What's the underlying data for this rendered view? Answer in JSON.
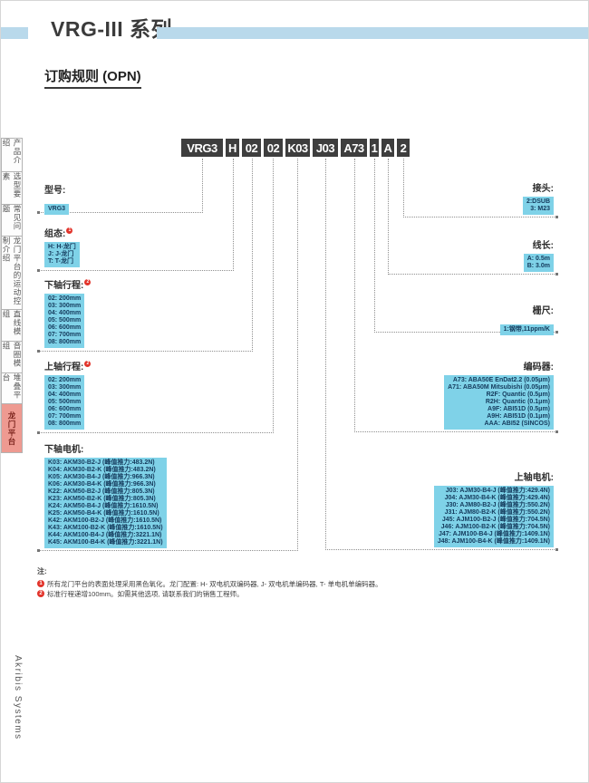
{
  "page": {
    "title": "VRG-III 系列",
    "subtitle": "订购规则 (OPN)",
    "brand_vertical": "Akribis Systems"
  },
  "colors": {
    "accent_bar": "#b9d9eb",
    "option_box": "#7fd2e8",
    "part_number_box": "#3e3e3e",
    "active_tab": "#ee9a91",
    "note_marker": "#e2342b"
  },
  "sidebar": {
    "items": [
      {
        "label": "产品介绍",
        "active": false
      },
      {
        "label": "选型要素",
        "active": false
      },
      {
        "label": "常见问题",
        "active": false
      },
      {
        "label": "龙门平台的运动控制介绍",
        "active": false
      },
      {
        "label": "直线模组",
        "active": false
      },
      {
        "label": "音圈模组",
        "active": false
      },
      {
        "label": "堆叠平台",
        "active": false
      },
      {
        "label": "龙门平台",
        "active": true
      }
    ]
  },
  "part_number": {
    "segments": [
      "VRG3",
      "H",
      "02",
      "02",
      "K03",
      "J03",
      "A73",
      "1",
      "A",
      "2"
    ]
  },
  "sections": {
    "left": [
      {
        "id": "model",
        "label": "型号:",
        "marker": "",
        "options": [
          "VRG3"
        ]
      },
      {
        "id": "config",
        "label": "组态:",
        "marker": "1",
        "options": [
          "H: H-龙门",
          "J: J-龙门",
          "T: T-龙门"
        ]
      },
      {
        "id": "lower-stroke",
        "label": "下轴行程:",
        "marker": "2",
        "options": [
          "02: 200mm",
          "03: 300mm",
          "04: 400mm",
          "05: 500mm",
          "06: 600mm",
          "07: 700mm",
          "08: 800mm"
        ]
      },
      {
        "id": "upper-stroke",
        "label": "上轴行程:",
        "marker": "2",
        "options": [
          "02: 200mm",
          "03: 300mm",
          "04: 400mm",
          "05: 500mm",
          "06: 600mm",
          "07: 700mm",
          "08: 800mm"
        ]
      },
      {
        "id": "lower-motor",
        "label": "下轴电机:",
        "marker": "",
        "options": [
          "K03: AKM30-B2-J (峰值推力:483.2N)",
          "K04: AKM30-B2-K (峰值推力:483.2N)",
          "K05: AKM30-B4-J (峰值推力:966.3N)",
          "K06: AKM30-B4-K (峰值推力:966.3N)",
          "K22: AKM50-B2-J (峰值推力:805.3N)",
          "K23: AKM50-B2-K (峰值推力:805.3N)",
          "K24: AKM50-B4-J (峰值推力:1610.5N)",
          "K25: AKM50-B4-K (峰值推力:1610.5N)",
          "K42: AKM100-B2-J (峰值推力:1610.5N)",
          "K43: AKM100-B2-K (峰值推力:1610.5N)",
          "K44: AKM100-B4-J (峰值推力:3221.1N)",
          "K45: AKM100-B4-K (峰值推力:3221.1N)"
        ]
      }
    ],
    "right": [
      {
        "id": "connector",
        "label": "接头:",
        "marker": "",
        "options": [
          "2:DSUB",
          "3: M23"
        ]
      },
      {
        "id": "cable-length",
        "label": "线长:",
        "marker": "",
        "options": [
          "A: 0.5m",
          "B: 3.0m"
        ]
      },
      {
        "id": "scale",
        "label": "栅尺:",
        "marker": "",
        "options": [
          "1:钢带,11ppm/K"
        ]
      },
      {
        "id": "encoder",
        "label": "编码器:",
        "marker": "",
        "options": [
          "A73: ABA50E EnDat2.2 (0.05μm)",
          "A71: ABA50M Mitsubishi (0.05μm)",
          "R2F: Quantic (0.5μm)",
          "R2H: Quantic (0.1μm)",
          "A9F: ABI51D (0.5μm)",
          "A9H: ABI51D (0.1μm)",
          "AAA: ABI52 (SINCOS)"
        ]
      },
      {
        "id": "upper-motor",
        "label": "上轴电机:",
        "marker": "",
        "options": [
          "J03: AJM30-B4-J (峰值推力:429.4N)",
          "J04: AJM30-B4-K (峰值推力:429.4N)",
          "J30: AJM80-B2-J (峰值推力:550.2N)",
          "J31: AJM80-B2-K (峰值推力:550.2N)",
          "J45: AJM100-B2-J (峰值推力:704.5N)",
          "J46: AJM100-B2-K (峰值推力:704.5N)",
          "J47: AJM100-B4-J (峰值推力:1409.1N)",
          "J48: AJM100-B4-K (峰值推力:1409.1N)"
        ]
      }
    ]
  },
  "notes": {
    "title": "注:",
    "items": [
      {
        "num": "1",
        "text": "所有龙门平台的表面处理采用黑色氧化。龙门配置: H- 双电机双编码器, J- 双电机单编码器, T- 单电机单编码器。"
      },
      {
        "num": "2",
        "text": "标准行程递增100mm。如需其他选项, 请联系我们的销售工程师。"
      }
    ]
  }
}
